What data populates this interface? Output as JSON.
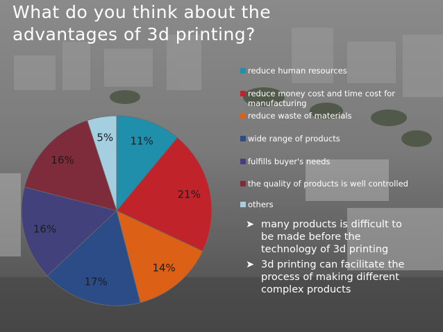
{
  "title_line1": "What do you think about the",
  "title_line2": "advantages of 3d printing?",
  "chart_data": {
    "type": "pie",
    "slices": [
      {
        "label": "reduce human resources",
        "pct_label": "11%",
        "value": 11,
        "color": "#1f8fac"
      },
      {
        "label_line1": "reduce money cost and time cost for",
        "label_line2": "manufacturing",
        "pct_label": "21%",
        "value": 21,
        "color": "#c1232b"
      },
      {
        "label": "reduce waste of materials",
        "pct_label": "14%",
        "value": 14,
        "color": "#dd6017"
      },
      {
        "label": "wide range of products",
        "pct_label": "17%",
        "value": 17,
        "color": "#2b4c87"
      },
      {
        "label": "fulfills buyer's needs",
        "pct_label": "16%",
        "value": 16,
        "color": "#43417c"
      },
      {
        "label": "the quality of products is well controlled",
        "pct_label": "16%",
        "value": 16,
        "color": "#7e2b3c"
      },
      {
        "label": "others",
        "pct_label": "5%",
        "value": 5,
        "color": "#a3cfe0"
      }
    ]
  },
  "bullets": [
    {
      "line1": "many products is difficult to",
      "line2": "be made before the",
      "line3": "technology of 3d printing"
    },
    {
      "line1": "3d printing can facilitate the",
      "line2": "process of making different",
      "line3": "complex products"
    }
  ],
  "colors": {
    "text": "#ffffff",
    "label": "#1c1c1c"
  }
}
